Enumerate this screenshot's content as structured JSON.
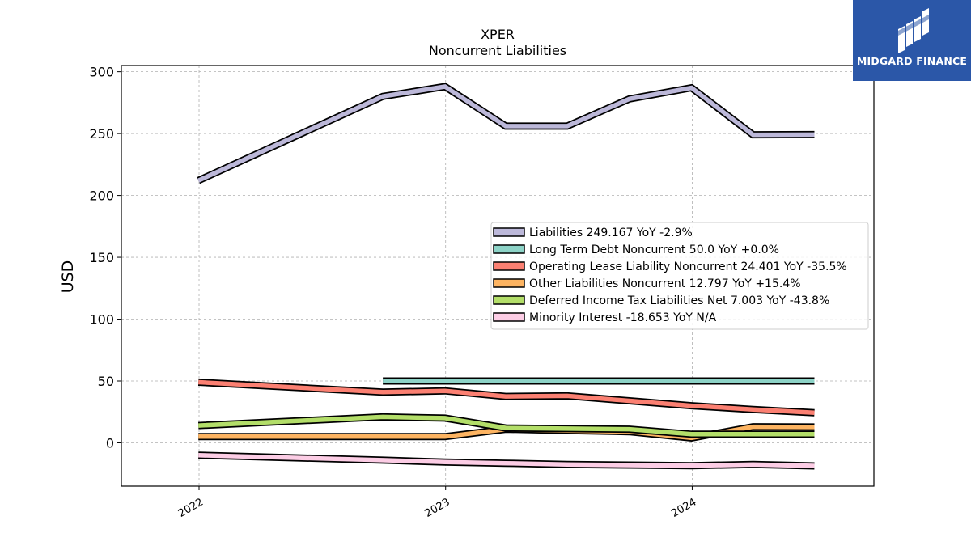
{
  "chart_data": {
    "type": "line",
    "title": "XPER",
    "subtitle": "Noncurrent  Liabilities",
    "ylabel": "USD",
    "xlabel": "",
    "ylim": [
      -35,
      305
    ],
    "xlim": [
      "2021-09-08",
      "2024-09-26"
    ],
    "yticks": [
      0,
      50,
      100,
      150,
      200,
      250,
      300
    ],
    "xticks": [
      {
        "label": "2022",
        "date": "2022-01-01"
      },
      {
        "label": "2023",
        "date": "2023-01-01"
      },
      {
        "label": "2024",
        "date": "2024-01-01"
      }
    ],
    "grid": true,
    "legend_position": "center-right",
    "x": [
      "2021-12-31",
      "2022-09-30",
      "2022-12-31",
      "2023-03-31",
      "2023-06-30",
      "2023-09-30",
      "2023-12-31",
      "2024-03-31",
      "2024-06-30"
    ],
    "series": [
      {
        "name": "Liabilities",
        "legend": "Liabilities  249.167 YoY -2.9%",
        "color": "#bcb8d9",
        "start": 0,
        "values": [
          212,
          280,
          288,
          256,
          256,
          278,
          287,
          249,
          249.167
        ]
      },
      {
        "name": "Long Term Debt Noncurrent",
        "legend": "Long Term Debt Noncurrent  50.0 YoY +0.0%",
        "color": "#8dd3c7",
        "start": 1,
        "values": [
          null,
          50,
          50,
          50,
          50,
          50,
          50,
          50,
          50.0
        ]
      },
      {
        "name": "Operating Lease Liability Noncurrent",
        "legend": "Operating Lease Liability Noncurrent  24.401 YoY -35.5%",
        "color": "#fb8072",
        "start": 0,
        "values": [
          49,
          41,
          42,
          37.5,
          38,
          34,
          30,
          27,
          24.401
        ]
      },
      {
        "name": "Other Liabilities Noncurrent",
        "legend": "Other Liabilities Noncurrent  12.797 YoY +15.4%",
        "color": "#fdb462",
        "start": 0,
        "values": [
          5,
          5,
          5,
          11,
          10,
          9,
          4,
          13,
          12.797
        ]
      },
      {
        "name": "Deferred Income Tax Liabilities Net",
        "legend": "Deferred Income Tax Liabilities Net  7.003 YoY -43.8%",
        "color": "#b3de69",
        "start": 0,
        "values": [
          14,
          21,
          20,
          12,
          11.5,
          11,
          7,
          7,
          7.003
        ]
      },
      {
        "name": "Minority Interest",
        "legend": "Minority Interest  -18.653 YoY N/A",
        "color": "#fccde5",
        "start": 0,
        "values": [
          -10,
          -14,
          -15.5,
          -16.5,
          -17.5,
          -18,
          -18.5,
          -17.5,
          -18.653
        ]
      }
    ]
  },
  "logo": {
    "text": "MIDGARD FINANCE",
    "background": "#2b57a8"
  }
}
